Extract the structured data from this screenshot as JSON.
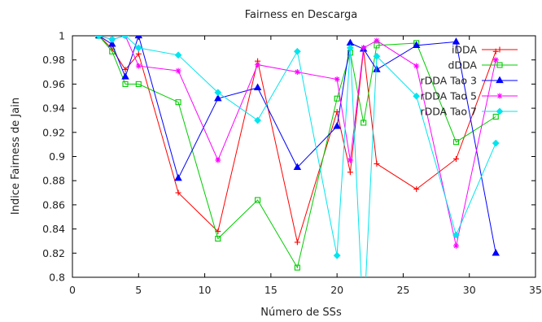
{
  "chart_data": {
    "type": "line",
    "title": "Fairness en Descarga",
    "xlabel": "Número de SSs",
    "ylabel": "Indice Fairness de Jain",
    "xlim": [
      0,
      35
    ],
    "ylim": [
      0.8,
      1.0
    ],
    "xticks": [
      0,
      5,
      10,
      15,
      20,
      25,
      30,
      35
    ],
    "yticks": [
      0.8,
      0.82,
      0.84,
      0.86,
      0.88,
      0.9,
      0.92,
      0.94,
      0.96,
      0.98,
      1.0
    ],
    "ytick_labels": [
      "0.8",
      "0.82",
      "0.84",
      "0.86",
      "0.88",
      "0.9",
      "0.92",
      "0.94",
      "0.96",
      "0.98",
      "1"
    ],
    "grid": false,
    "legend_position": "top-right",
    "series": [
      {
        "name": "iDDA",
        "color": "#ff0000",
        "marker": "plus",
        "x": [
          2,
          3,
          4,
          5,
          8,
          11,
          14,
          17,
          20,
          21,
          22,
          23,
          26,
          29,
          32
        ],
        "y": [
          1.0,
          0.989,
          0.972,
          0.985,
          0.87,
          0.838,
          0.979,
          0.829,
          0.937,
          0.887,
          0.988,
          0.894,
          0.873,
          0.898,
          0.987
        ]
      },
      {
        "name": "dDDA",
        "color": "#00cc00",
        "marker": "square",
        "x": [
          2,
          3,
          4,
          5,
          8,
          11,
          14,
          17,
          20,
          21,
          22,
          23,
          26,
          29,
          32
        ],
        "y": [
          1.0,
          0.987,
          0.96,
          0.96,
          0.945,
          0.832,
          0.864,
          0.808,
          0.948,
          0.986,
          0.928,
          0.992,
          0.994,
          0.912,
          0.933
        ]
      },
      {
        "name": "rDDA Tao 3",
        "color": "#0000ff",
        "marker": "triangle",
        "x": [
          2,
          3,
          4,
          5,
          8,
          11,
          14,
          17,
          20,
          21,
          22,
          23,
          26,
          29,
          32
        ],
        "y": [
          1.0,
          0.993,
          0.966,
          1.0,
          0.882,
          0.948,
          0.957,
          0.891,
          0.925,
          0.994,
          0.989,
          0.972,
          0.992,
          0.995,
          0.82
        ]
      },
      {
        "name": "rDDA Tao 5",
        "color": "#ff00ff",
        "marker": "star",
        "x": [
          2,
          3,
          4,
          5,
          8,
          11,
          14,
          17,
          20,
          21,
          22,
          23,
          26,
          29,
          32
        ],
        "y": [
          1.0,
          0.997,
          1.0,
          0.975,
          0.971,
          0.897,
          0.976,
          0.97,
          0.964,
          0.897,
          0.99,
          0.996,
          0.975,
          0.826,
          0.98
        ]
      },
      {
        "name": "rDDA Tao 7",
        "color": "#00e5ee",
        "marker": "diamond",
        "x": [
          2,
          3,
          4,
          5,
          8,
          11,
          14,
          17,
          20,
          21,
          22,
          23,
          26,
          29,
          32
        ],
        "y": [
          1.0,
          0.997,
          1.0,
          0.99,
          0.984,
          0.953,
          0.93,
          0.987,
          0.818,
          0.99,
          0.76,
          0.983,
          0.95,
          0.835,
          0.911
        ]
      }
    ]
  }
}
